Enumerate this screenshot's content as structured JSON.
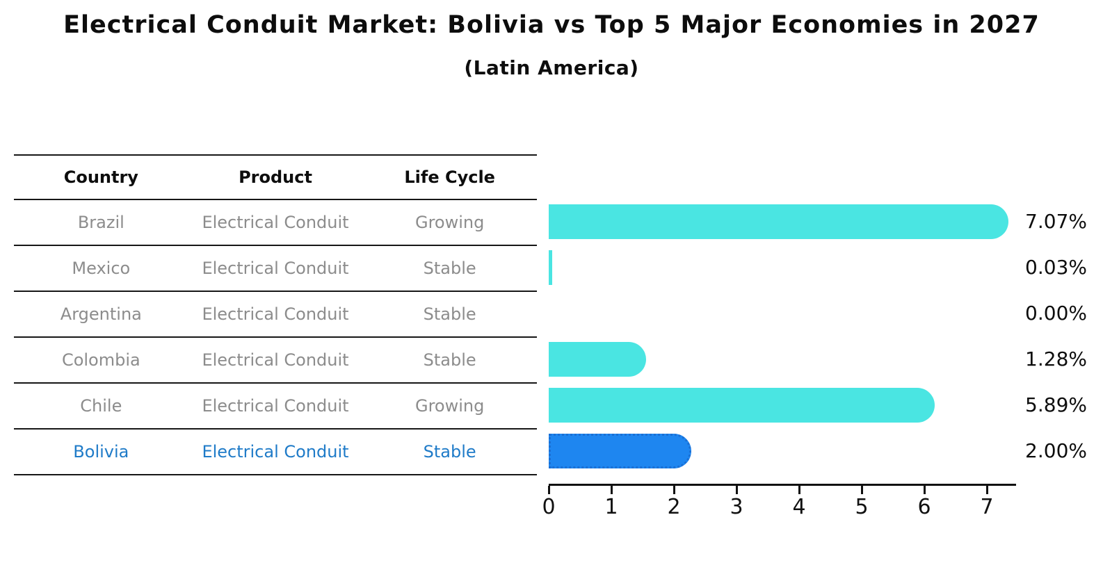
{
  "title": "Electrical Conduit Market: Bolivia vs Top 5 Major Economies in 2027",
  "subtitle": "(Latin America)",
  "table": {
    "headers": [
      "Country",
      "Product",
      "Life Cycle"
    ],
    "rows": [
      {
        "country": "Brazil",
        "product": "Electrical Conduit",
        "life_cycle": "Growing",
        "highlighted": false
      },
      {
        "country": "Mexico",
        "product": "Electrical Conduit",
        "life_cycle": "Stable",
        "highlighted": false
      },
      {
        "country": "Argentina",
        "product": "Electrical Conduit",
        "life_cycle": "Stable",
        "highlighted": false
      },
      {
        "country": "Colombia",
        "product": "Electrical Conduit",
        "life_cycle": "Stable",
        "highlighted": false
      },
      {
        "country": "Chile",
        "product": "Electrical Conduit",
        "life_cycle": "Growing",
        "highlighted": false
      },
      {
        "country": "Bolivia",
        "product": "Electrical Conduit",
        "life_cycle": "Stable",
        "highlighted": true
      }
    ]
  },
  "chart_data": {
    "type": "bar",
    "orientation": "horizontal",
    "title": "Electrical Conduit Market: Bolivia vs Top 5 Major Economies in 2027",
    "subtitle": "(Latin America)",
    "categories": [
      "Brazil",
      "Mexico",
      "Argentina",
      "Colombia",
      "Chile",
      "Bolivia"
    ],
    "values": [
      7.07,
      0.03,
      0.0,
      1.28,
      5.89,
      2.0
    ],
    "value_labels": [
      "7.07%",
      "0.03%",
      "0.00%",
      "1.28%",
      "5.89%",
      "2.00%"
    ],
    "x_ticks": [
      "0",
      "1",
      "2",
      "3",
      "4",
      "5",
      "6",
      "7"
    ],
    "xlim": [
      0,
      7.45
    ],
    "grid": false,
    "legend": "none",
    "bar_color": "#4ae5e2",
    "highlight_bar_color": "#1e86f0",
    "highlight_bar_border_color": "#1a6fd4",
    "highlight_text_color": "#1f7bc8",
    "highlight_index": 5,
    "highlight_category": "Bolivia"
  }
}
